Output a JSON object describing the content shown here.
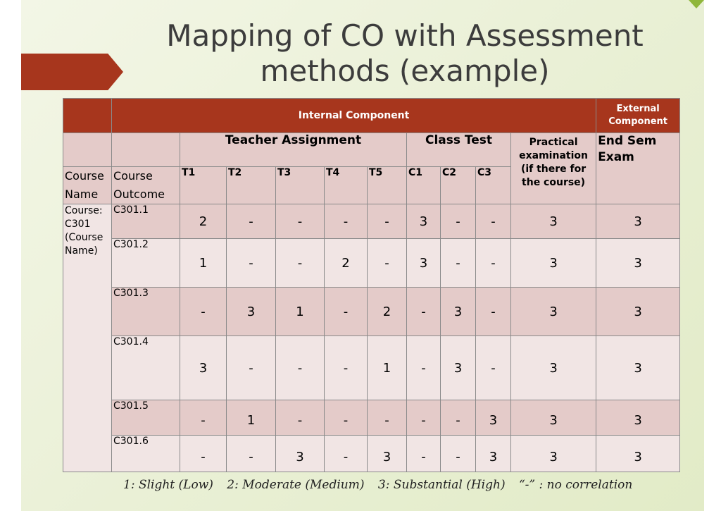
{
  "slide": {
    "title_line1": "Mapping of CO with Assessment",
    "title_line2": "methods (example)",
    "accent_color": "#a7361d"
  },
  "table": {
    "internal_component": "Internal Component",
    "external_component": "External Component",
    "teacher_assignment": "Teacher Assignment",
    "class_test": "Class Test",
    "practical": "Practical examination (if there for the course)",
    "end_sem": "End Sem Exam",
    "course_name_label": "Course Name",
    "course_outcome_label": "Course Outcome",
    "sub_headers": [
      "T1",
      "T2",
      "T3",
      "T4",
      "T5",
      "C1",
      "C2",
      "C3"
    ],
    "course": "Course: C301 (Course Name)",
    "rows": [
      {
        "co": "C301.1",
        "values": [
          "2",
          "-",
          "-",
          "-",
          "-",
          "3",
          "-",
          "-",
          "3",
          "3"
        ]
      },
      {
        "co": "C301.2",
        "values": [
          "1",
          "-",
          "-",
          "2",
          "-",
          "3",
          "-",
          "-",
          "3",
          "3"
        ]
      },
      {
        "co": "C301.3",
        "values": [
          "-",
          "3",
          "1",
          "-",
          "2",
          "-",
          "3",
          "-",
          "3",
          "3"
        ]
      },
      {
        "co": "C301.4",
        "values": [
          "3",
          "-",
          "-",
          "-",
          "1",
          "-",
          "3",
          "-",
          "3",
          "3"
        ]
      },
      {
        "co": "C301.5",
        "values": [
          "-",
          "1",
          "-",
          "-",
          "-",
          "-",
          "-",
          "3",
          "3",
          "3"
        ]
      },
      {
        "co": "C301.6",
        "values": [
          "-",
          "-",
          "3",
          "-",
          "3",
          "-",
          "-",
          "3",
          "3",
          "3"
        ]
      }
    ]
  },
  "legend": {
    "item1": "1: Slight (Low)",
    "item2": "2: Moderate (Medium)",
    "item3": "3: Substantial (High)",
    "item4": "“-” : no correlation"
  }
}
